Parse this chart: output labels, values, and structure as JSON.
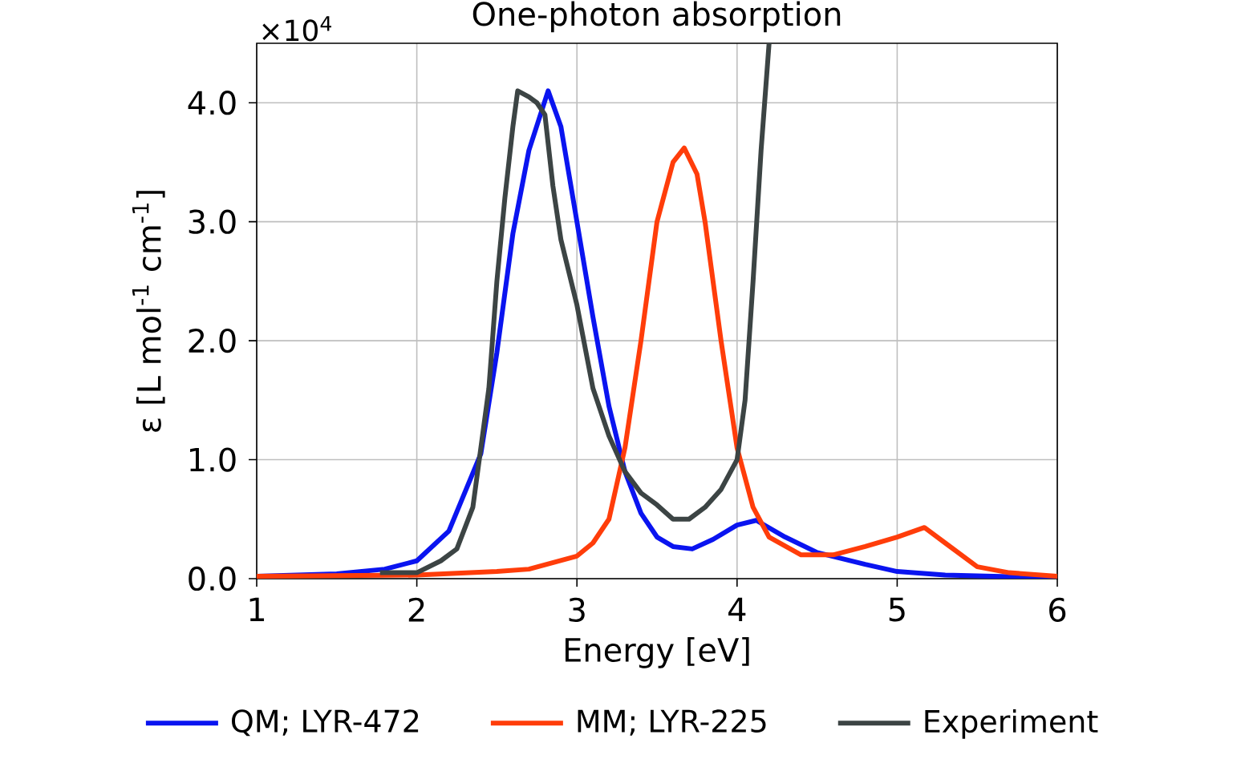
{
  "chart_data": {
    "type": "line",
    "title": "One-photon absorption",
    "xlabel": "Energy [eV]",
    "ylabel": "ε [L mol$^{-1}$ cm$^{-1}$]",
    "annotations": [
      "×10$^{4}$"
    ],
    "xlim": [
      1,
      6
    ],
    "ylim": [
      0,
      4.5
    ],
    "xticks": [
      1,
      2,
      3,
      4,
      5,
      6
    ],
    "yticks": [
      {
        "value": 0,
        "label": "0.0"
      },
      {
        "value": 1,
        "label": "1.0"
      },
      {
        "value": 2,
        "label": "2.0"
      },
      {
        "value": 3,
        "label": "3.0"
      },
      {
        "value": 4,
        "label": "4.0"
      }
    ],
    "grid": true,
    "legend": "bottom",
    "series": [
      {
        "name": "QM; LYR-472",
        "color": "#0a14f0",
        "x": [
          1,
          1.5,
          1.8,
          2.0,
          2.2,
          2.4,
          2.5,
          2.6,
          2.7,
          2.82,
          2.9,
          3.0,
          3.1,
          3.2,
          3.3,
          3.4,
          3.5,
          3.6,
          3.72,
          3.85,
          4.0,
          4.12,
          4.3,
          4.5,
          4.8,
          5.0,
          5.3,
          5.6,
          6.0
        ],
        "values": [
          0.02,
          0.04,
          0.08,
          0.15,
          0.4,
          1.05,
          1.9,
          2.9,
          3.6,
          4.1,
          3.8,
          3.0,
          2.2,
          1.45,
          0.9,
          0.55,
          0.35,
          0.27,
          0.25,
          0.33,
          0.45,
          0.49,
          0.35,
          0.22,
          0.12,
          0.06,
          0.03,
          0.02,
          0.01
        ]
      },
      {
        "name": "MM; LYR-225",
        "color": "#ff3d0a",
        "x": [
          1,
          2.0,
          2.5,
          2.7,
          3.0,
          3.1,
          3.2,
          3.3,
          3.4,
          3.5,
          3.6,
          3.67,
          3.75,
          3.8,
          3.9,
          4.0,
          4.1,
          4.2,
          4.4,
          4.6,
          4.8,
          5.0,
          5.17,
          5.3,
          5.5,
          5.7,
          6.0
        ],
        "values": [
          0.02,
          0.03,
          0.06,
          0.08,
          0.19,
          0.3,
          0.5,
          1.1,
          2.0,
          3.0,
          3.5,
          3.62,
          3.4,
          3.0,
          2.0,
          1.1,
          0.6,
          0.35,
          0.2,
          0.2,
          0.27,
          0.35,
          0.43,
          0.3,
          0.1,
          0.05,
          0.02
        ]
      },
      {
        "name": "Experiment",
        "color": "#3c4444",
        "x": [
          1.77,
          2.0,
          2.15,
          2.25,
          2.35,
          2.45,
          2.5,
          2.55,
          2.6,
          2.63,
          2.7,
          2.75,
          2.8,
          2.85,
          2.9,
          3.0,
          3.1,
          3.2,
          3.3,
          3.4,
          3.5,
          3.6,
          3.7,
          3.8,
          3.9,
          4.0,
          4.05,
          4.1,
          4.15,
          4.2
        ],
        "values": [
          0.05,
          0.05,
          0.15,
          0.25,
          0.6,
          1.6,
          2.5,
          3.2,
          3.8,
          4.1,
          4.05,
          4.0,
          3.9,
          3.3,
          2.85,
          2.3,
          1.6,
          1.2,
          0.9,
          0.72,
          0.62,
          0.5,
          0.5,
          0.6,
          0.75,
          1.0,
          1.5,
          2.5,
          3.6,
          4.5
        ]
      }
    ]
  }
}
